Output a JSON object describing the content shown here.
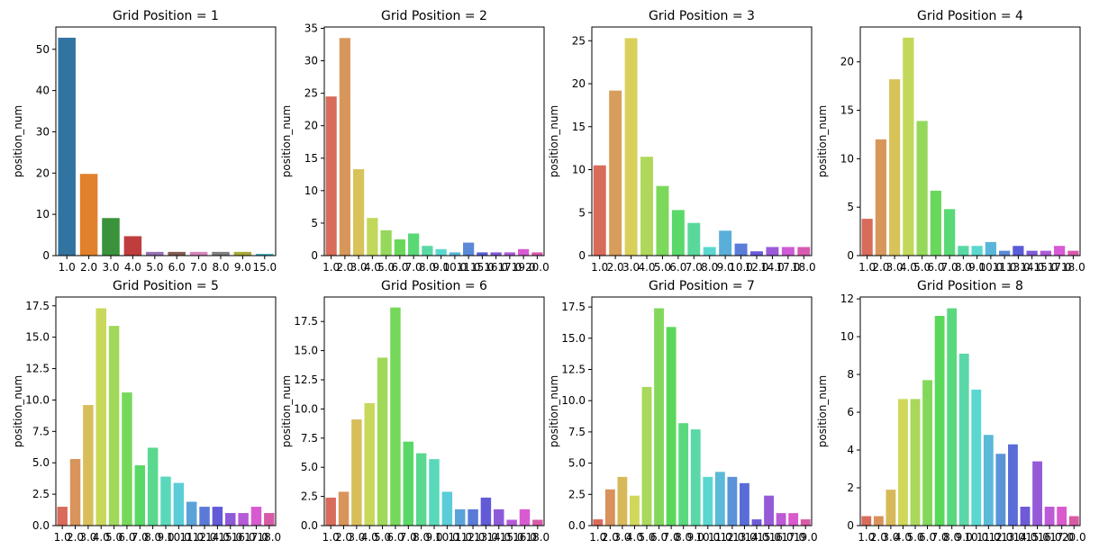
{
  "chart_data": [
    {
      "type": "bar",
      "title": "Grid Position = 1",
      "ylabel": "position_num",
      "categories": [
        "1.0",
        "2.0",
        "3.0",
        "4.0",
        "5.0",
        "6.0",
        "7.0",
        "8.0",
        "9.0",
        "15.0"
      ],
      "values": [
        52.8,
        19.8,
        9.1,
        4.7,
        0.9,
        0.9,
        0.9,
        0.9,
        0.9,
        0.4
      ],
      "colors": [
        "#3274a1",
        "#e1812c",
        "#3a923a",
        "#c03d3e",
        "#9372b2",
        "#845b53",
        "#d684bd",
        "#7f7f7f",
        "#a9aa35",
        "#2ea6b7"
      ],
      "ylim": [
        0,
        55.4
      ],
      "yticks": [
        0,
        10,
        20,
        30,
        40,
        50
      ]
    },
    {
      "type": "bar",
      "title": "Grid Position = 2",
      "ylabel": "position_num",
      "categories": [
        "1.0",
        "2.0",
        "3.0",
        "4.0",
        "5.0",
        "6.0",
        "7.0",
        "8.0",
        "9.0",
        "10.0",
        "11.0",
        "15.0",
        "16.0",
        "17.0",
        "19.0",
        "20.0"
      ],
      "values": [
        24.5,
        33.5,
        13.3,
        5.8,
        3.9,
        2.5,
        3.4,
        1.5,
        1.0,
        0.5,
        2.0,
        0.5,
        0.5,
        0.5,
        1.0,
        0.5
      ],
      "palette": "husl",
      "ylim": [
        0,
        35.2
      ],
      "yticks": [
        0,
        5,
        10,
        15,
        20,
        25,
        30,
        35
      ]
    },
    {
      "type": "bar",
      "title": "Grid Position = 3",
      "ylabel": "position_num",
      "categories": [
        "1.0",
        "2.0",
        "3.0",
        "4.0",
        "5.0",
        "6.0",
        "7.0",
        "8.0",
        "9.0",
        "10.0",
        "12.0",
        "14.0",
        "17.0",
        "18.0"
      ],
      "values": [
        10.5,
        19.2,
        25.3,
        11.5,
        8.1,
        5.3,
        3.8,
        1.0,
        2.9,
        1.4,
        0.5,
        1.0,
        1.0,
        1.0
      ],
      "palette": "husl",
      "ylim": [
        0,
        26.6
      ],
      "yticks": [
        0,
        5,
        10,
        15,
        20,
        25
      ]
    },
    {
      "type": "bar",
      "title": "Grid Position = 4",
      "ylabel": "position_num",
      "categories": [
        "1.0",
        "2.0",
        "3.0",
        "4.0",
        "5.0",
        "6.0",
        "7.0",
        "8.0",
        "9.0",
        "10.0",
        "11.0",
        "13.0",
        "14.0",
        "15.0",
        "17.0",
        "18.0"
      ],
      "values": [
        3.8,
        12.0,
        18.2,
        22.5,
        13.9,
        6.7,
        4.8,
        1.0,
        1.0,
        1.4,
        0.5,
        1.0,
        0.5,
        0.5,
        1.0,
        0.5
      ],
      "palette": "husl",
      "ylim": [
        0,
        23.6
      ],
      "yticks": [
        0,
        5,
        10,
        15,
        20
      ]
    },
    {
      "type": "bar",
      "title": "Grid Position = 5",
      "ylabel": "position_num",
      "categories": [
        "1.0",
        "2.0",
        "3.0",
        "4.0",
        "5.0",
        "6.0",
        "7.0",
        "8.0",
        "9.0",
        "10.0",
        "11.0",
        "12.0",
        "14.0",
        "15.0",
        "16.0",
        "17.0",
        "18.0"
      ],
      "values": [
        1.5,
        5.3,
        9.6,
        17.3,
        15.9,
        10.6,
        4.8,
        6.2,
        3.9,
        3.4,
        1.9,
        1.5,
        1.5,
        1.0,
        1.0,
        1.5,
        1.0
      ],
      "palette": "husl",
      "ylim": [
        0,
        18.2
      ],
      "yticks": [
        {
          "value": 0,
          "label": "0.0"
        },
        2.5,
        {
          "value": 5,
          "label": "5.0"
        },
        7.5,
        {
          "value": 10,
          "label": "10.0"
        },
        12.5,
        {
          "value": 15,
          "label": "15.0"
        },
        17.5
      ]
    },
    {
      "type": "bar",
      "title": "Grid Position = 6",
      "ylabel": "position_num",
      "categories": [
        "1.0",
        "2.0",
        "3.0",
        "4.0",
        "5.0",
        "6.0",
        "7.0",
        "8.0",
        "9.0",
        "10.0",
        "11.0",
        "12.0",
        "13.0",
        "14.0",
        "15.0",
        "16.0",
        "18.0"
      ],
      "values": [
        2.4,
        2.9,
        9.1,
        10.5,
        14.4,
        18.7,
        7.2,
        6.2,
        5.7,
        2.9,
        1.4,
        1.4,
        2.4,
        1.4,
        0.5,
        1.4,
        0.5
      ],
      "palette": "husl",
      "ylim": [
        0,
        19.6
      ],
      "yticks": [
        {
          "value": 0,
          "label": "0.0"
        },
        2.5,
        {
          "value": 5,
          "label": "5.0"
        },
        7.5,
        {
          "value": 10,
          "label": "10.0"
        },
        12.5,
        {
          "value": 15,
          "label": "15.0"
        },
        17.5
      ]
    },
    {
      "type": "bar",
      "title": "Grid Position = 7",
      "ylabel": "position_num",
      "categories": [
        "1.0",
        "2.0",
        "3.0",
        "4.0",
        "5.0",
        "6.0",
        "7.0",
        "8.0",
        "9.0",
        "10.0",
        "11.0",
        "12.0",
        "13.0",
        "14.0",
        "15.0",
        "16.0",
        "17.0",
        "19.0"
      ],
      "values": [
        0.5,
        2.9,
        3.9,
        2.4,
        11.1,
        17.4,
        15.9,
        8.2,
        7.7,
        3.9,
        4.3,
        3.9,
        3.4,
        0.5,
        2.4,
        1.0,
        1.0,
        0.5
      ],
      "palette": "husl",
      "ylim": [
        0,
        18.3
      ],
      "yticks": [
        {
          "value": 0,
          "label": "0.0"
        },
        2.5,
        {
          "value": 5,
          "label": "5.0"
        },
        7.5,
        {
          "value": 10,
          "label": "10.0"
        },
        12.5,
        {
          "value": 15,
          "label": "15.0"
        },
        17.5
      ]
    },
    {
      "type": "bar",
      "title": "Grid Position = 8",
      "ylabel": "position_num",
      "categories": [
        "1.0",
        "2.0",
        "3.0",
        "4.0",
        "5.0",
        "6.0",
        "7.0",
        "8.0",
        "9.0",
        "10.0",
        "11.0",
        "12.0",
        "13.0",
        "14.0",
        "15.0",
        "16.0",
        "17.0",
        "20.0"
      ],
      "values": [
        0.5,
        0.5,
        1.9,
        6.7,
        6.7,
        7.7,
        11.1,
        11.5,
        9.1,
        7.2,
        4.8,
        3.8,
        4.3,
        1.0,
        3.4,
        1.0,
        1.0,
        0.5
      ],
      "palette": "husl",
      "ylim": [
        0,
        12.1
      ],
      "yticks": [
        0,
        2,
        4,
        6,
        8,
        10,
        12
      ]
    }
  ]
}
